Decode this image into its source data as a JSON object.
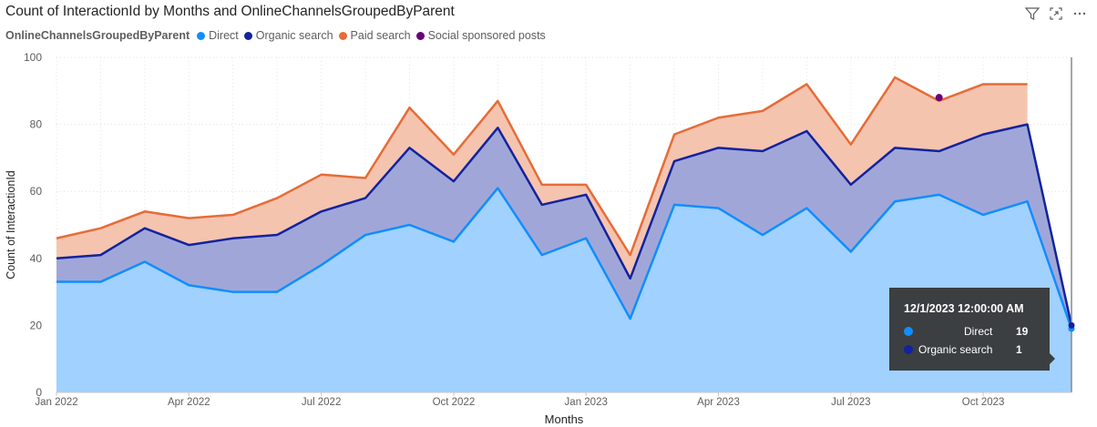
{
  "title": "Count of InteractionId by Months and OnlineChannelsGroupedByParent",
  "legend": {
    "title": "OnlineChannelsGroupedByParent",
    "items": [
      {
        "label": "Direct",
        "color": "#118dff"
      },
      {
        "label": "Organic search",
        "color": "#12239e"
      },
      {
        "label": "Paid search",
        "color": "#e66c37"
      },
      {
        "label": "Social sponsored posts",
        "color": "#6b007b"
      }
    ]
  },
  "header_icons": [
    "filter-icon",
    "focus-mode-icon",
    "more-options-icon"
  ],
  "tooltip": {
    "title": "12/1/2023 12:00:00 AM",
    "rows": [
      {
        "label": "Direct",
        "value": "19",
        "color": "#118dff"
      },
      {
        "label": "Organic search",
        "value": "1",
        "color": "#12239e"
      }
    ]
  },
  "chart_data": {
    "type": "area",
    "stacked": true,
    "title": "Count of InteractionId by Months and OnlineChannelsGroupedByParent",
    "xlabel": "Months",
    "ylabel": "Count of InteractionId",
    "ylim": [
      0,
      100
    ],
    "yticks": [
      0,
      20,
      40,
      60,
      80,
      100
    ],
    "xticks": [
      "Jan 2022",
      "Apr 2022",
      "Jul 2022",
      "Oct 2022",
      "Jan 2023",
      "Apr 2023",
      "Jul 2023",
      "Oct 2023"
    ],
    "x": [
      "2022-01",
      "2022-02",
      "2022-03",
      "2022-04",
      "2022-05",
      "2022-06",
      "2022-07",
      "2022-08",
      "2022-09",
      "2022-10",
      "2022-11",
      "2022-12",
      "2023-01",
      "2023-02",
      "2023-03",
      "2023-04",
      "2023-05",
      "2023-06",
      "2023-07",
      "2023-08",
      "2023-09",
      "2023-10",
      "2023-11",
      "2023-12"
    ],
    "series": [
      {
        "name": "Direct",
        "color": "#118dff",
        "values": [
          33,
          33,
          39,
          32,
          30,
          30,
          38,
          47,
          50,
          45,
          61,
          41,
          46,
          22,
          56,
          55,
          47,
          55,
          42,
          57,
          59,
          53,
          57,
          19
        ]
      },
      {
        "name": "Organic search",
        "color": "#12239e",
        "values": [
          7,
          8,
          10,
          12,
          16,
          17,
          16,
          11,
          23,
          18,
          18,
          15,
          13,
          12,
          13,
          18,
          25,
          23,
          20,
          16,
          13,
          24,
          23,
          1
        ]
      },
      {
        "name": "Paid search",
        "color": "#e66c37",
        "values": [
          6,
          8,
          5,
          8,
          7,
          11,
          11,
          6,
          12,
          8,
          8,
          6,
          3,
          7,
          8,
          9,
          12,
          14,
          12,
          21,
          15,
          15,
          12,
          null
        ]
      },
      {
        "name": "Social sponsored posts",
        "color": "#6b007b",
        "values": [
          null,
          null,
          null,
          null,
          null,
          null,
          null,
          null,
          null,
          null,
          null,
          null,
          null,
          null,
          null,
          null,
          null,
          null,
          null,
          null,
          1,
          null,
          null,
          null
        ]
      }
    ],
    "grid": true,
    "legend_position": "top-left"
  }
}
